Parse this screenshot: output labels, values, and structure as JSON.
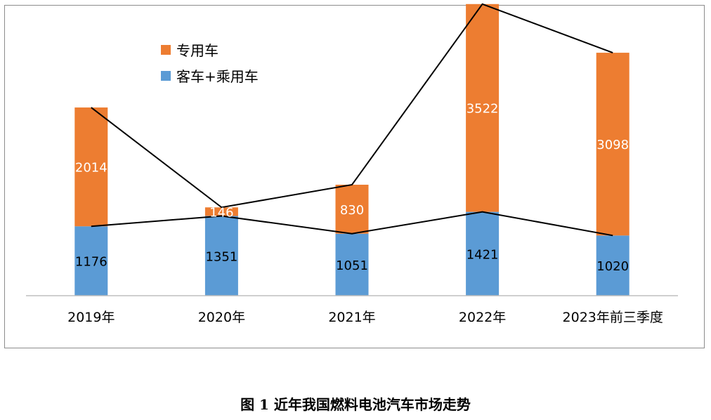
{
  "chart_data": {
    "type": "bar",
    "stacked": true,
    "categories": [
      "2019年",
      "2020年",
      "2021年",
      "2022年",
      "2023年前三季度"
    ],
    "series": [
      {
        "name": "客车+乘用车",
        "values": [
          1176,
          1351,
          1051,
          1421,
          1020
        ],
        "color": "#5b9bd5",
        "label_color": "#000000"
      },
      {
        "name": "专用车",
        "values": [
          2014,
          146,
          830,
          3522,
          3098
        ],
        "color": "#ed7d31",
        "label_color": "#ffffff"
      }
    ],
    "connector_lines": true,
    "legend_position": "top-left",
    "grid": false,
    "ylim": [
      0,
      5000
    ]
  },
  "caption": "图 1  近年我国燃料电池汽车市场走势"
}
